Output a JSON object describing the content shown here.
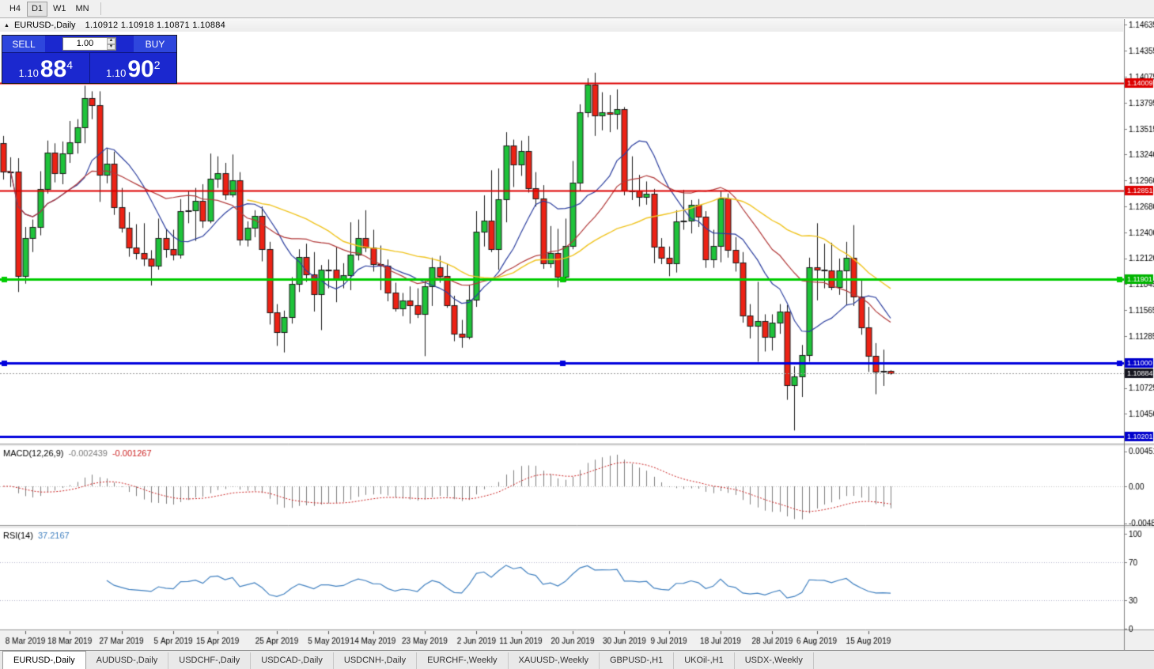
{
  "toolbar": {
    "periods": [
      "H4",
      "D1",
      "W1",
      "MN"
    ],
    "active_period": "D1"
  },
  "title_bar": {
    "panel_toggle_icon": "▲",
    "title": "EURUSD-,Daily",
    "ohlc": "1.10912 1.10918 1.10871 1.10884"
  },
  "trade_panel": {
    "sell_label": "SELL",
    "buy_label": "BUY",
    "volume": "1.00",
    "up_icon": "▲",
    "down_icon": "▼",
    "sell_price": {
      "prefix": "1.10",
      "big": "88",
      "sup": "4"
    },
    "buy_price": {
      "prefix": "1.10",
      "big": "90",
      "sup": "2"
    }
  },
  "chart_data": {
    "type": "candlestick",
    "symbol": "EURUSD-",
    "timeframe": "Daily",
    "colors": {
      "bg": "#ffffff",
      "bull": "#1ec33a",
      "bear": "#ed2215",
      "outline": "#1a1a1a",
      "axis_text": "#000000"
    },
    "price_axis": {
      "labels": [
        "1.14635",
        "1.14355",
        "1.14075",
        "1.13795",
        "1.13515",
        "1.13240",
        "1.12960",
        "1.12680",
        "1.12400",
        "1.12120",
        "1.11845",
        "1.11565",
        "1.11285",
        "1.10725",
        "1.10450"
      ]
    },
    "hlines": [
      {
        "price": 1.14009,
        "color": "#dd0000",
        "width": 2,
        "badge": "1.14009",
        "badge_bg": "#dd0000",
        "handles": false
      },
      {
        "price": 1.12851,
        "color": "#dd0000",
        "width": 2,
        "badge": "1.12851",
        "badge_bg": "#dd0000",
        "handles": false
      },
      {
        "price": 1.11901,
        "color": "#00cc00",
        "width": 3,
        "badge": "1.11901",
        "badge_bg": "#00b400",
        "handles": true
      },
      {
        "price": 1.11,
        "color": "#0000dd",
        "width": 3,
        "badge": "1.11000",
        "badge_bg": "#0000cc",
        "handles": true
      },
      {
        "price": 1.10201,
        "color": "#0000dd",
        "width": 3,
        "badge": "1.10201",
        "badge_bg": "#0000cc",
        "handles": false
      }
    ],
    "current_price": {
      "value": 1.10884,
      "badge": "1.10884",
      "badge_bg": "#15151f",
      "line_color": "#999999"
    },
    "date_labels": [
      {
        "i": 3,
        "t": "8 Mar 2019"
      },
      {
        "i": 9,
        "t": "18 Mar 2019"
      },
      {
        "i": 16,
        "t": "27 Mar 2019"
      },
      {
        "i": 23,
        "t": "5 Apr 2019"
      },
      {
        "i": 29,
        "t": "15 Apr 2019"
      },
      {
        "i": 37,
        "t": "25 Apr 2019"
      },
      {
        "i": 44,
        "t": "5 May 2019"
      },
      {
        "i": 50,
        "t": "14 May 2019"
      },
      {
        "i": 57,
        "t": "23 May 2019"
      },
      {
        "i": 64,
        "t": "2 Jun 2019"
      },
      {
        "i": 70,
        "t": "11 Jun 2019"
      },
      {
        "i": 77,
        "t": "20 Jun 2019"
      },
      {
        "i": 84,
        "t": "30 Jun 2019"
      },
      {
        "i": 90,
        "t": "9 Jul 2019"
      },
      {
        "i": 97,
        "t": "18 Jul 2019"
      },
      {
        "i": 104,
        "t": "28 Jul 2019"
      },
      {
        "i": 110,
        "t": "6 Aug 2019"
      },
      {
        "i": 117,
        "t": "15 Aug 2019"
      }
    ],
    "ma": [
      {
        "period": 10,
        "color": "#2c3f9f",
        "width": 1.2,
        "start_at_full": false
      },
      {
        "period": 21,
        "color": "#b23a3a",
        "width": 1.2,
        "start_at_full": false
      },
      {
        "period": 34,
        "color": "#f0c420",
        "width": 1.4,
        "start_at_full": true
      }
    ],
    "macd": {
      "label": "MACD(12,26,9)",
      "value": "-0.002439",
      "signal": "-0.001267",
      "bar_color": "#7f7f7f",
      "signal_color": "#cc2222",
      "axis": [
        {
          "t": "0.004517",
          "v": 0.004517
        },
        {
          "t": "0.00",
          "v": 0
        },
        {
          "t": "-0.004806",
          "v": -0.004806
        }
      ]
    },
    "rsi": {
      "label": "RSI(14)",
      "value": "37.2167",
      "period": 14,
      "line_color": "#4080c0",
      "levels": [
        70,
        30
      ],
      "axis": [
        {
          "t": "100",
          "v": 100
        },
        {
          "t": "70",
          "v": 70
        },
        {
          "t": "30",
          "v": 30
        },
        {
          "t": "0",
          "v": 0
        }
      ]
    },
    "candles": [
      [
        1.1336,
        1.1344,
        1.1297,
        1.1306
      ],
      [
        1.1306,
        1.1321,
        1.1289,
        1.1306
      ],
      [
        1.1306,
        1.132,
        1.1176,
        1.1193
      ],
      [
        1.1193,
        1.1246,
        1.1185,
        1.1234
      ],
      [
        1.1234,
        1.1254,
        1.1219,
        1.1246
      ],
      [
        1.1246,
        1.1306,
        1.1237,
        1.1287
      ],
      [
        1.1287,
        1.1339,
        1.1282,
        1.1326
      ],
      [
        1.1326,
        1.1336,
        1.1294,
        1.1304
      ],
      [
        1.1304,
        1.1338,
        1.1292,
        1.1325
      ],
      [
        1.1325,
        1.136,
        1.1315,
        1.1337
      ],
      [
        1.1337,
        1.1362,
        1.1325,
        1.1353
      ],
      [
        1.1353,
        1.1398,
        1.1336,
        1.1385
      ],
      [
        1.1385,
        1.1392,
        1.1362,
        1.1377
      ],
      [
        1.1377,
        1.1392,
        1.1273,
        1.1302
      ],
      [
        1.1302,
        1.133,
        1.1293,
        1.1314
      ],
      [
        1.1314,
        1.1327,
        1.1259,
        1.1267
      ],
      [
        1.1267,
        1.1288,
        1.124,
        1.1245
      ],
      [
        1.1245,
        1.1262,
        1.1214,
        1.1224
      ],
      [
        1.1224,
        1.1249,
        1.1211,
        1.1218
      ],
      [
        1.1218,
        1.125,
        1.1204,
        1.1212
      ],
      [
        1.1212,
        1.1221,
        1.1183,
        1.1204
      ],
      [
        1.1204,
        1.1255,
        1.12,
        1.1234
      ],
      [
        1.1234,
        1.1244,
        1.1213,
        1.1222
      ],
      [
        1.1222,
        1.1243,
        1.121,
        1.1216
      ],
      [
        1.1216,
        1.1276,
        1.1212,
        1.1263
      ],
      [
        1.1263,
        1.1285,
        1.125,
        1.1264
      ],
      [
        1.1264,
        1.1288,
        1.1231,
        1.1274
      ],
      [
        1.1274,
        1.1292,
        1.1245,
        1.1253
      ],
      [
        1.1253,
        1.1325,
        1.125,
        1.1298
      ],
      [
        1.1298,
        1.1322,
        1.1288,
        1.1304
      ],
      [
        1.1304,
        1.1315,
        1.1275,
        1.1281
      ],
      [
        1.1281,
        1.1324,
        1.1278,
        1.1296
      ],
      [
        1.1296,
        1.1305,
        1.1226,
        1.1232
      ],
      [
        1.1232,
        1.1252,
        1.1225,
        1.1245
      ],
      [
        1.1245,
        1.1264,
        1.1235,
        1.1258
      ],
      [
        1.1258,
        1.1268,
        1.1209,
        1.1222
      ],
      [
        1.1222,
        1.123,
        1.1141,
        1.1154
      ],
      [
        1.1154,
        1.1163,
        1.1118,
        1.1133
      ],
      [
        1.1133,
        1.1156,
        1.1111,
        1.1149
      ],
      [
        1.1149,
        1.1192,
        1.1142,
        1.1185
      ],
      [
        1.1185,
        1.1222,
        1.1176,
        1.1214
      ],
      [
        1.1214,
        1.1228,
        1.1187,
        1.1195
      ],
      [
        1.1195,
        1.1219,
        1.1155,
        1.1174
      ],
      [
        1.1174,
        1.1205,
        1.1135,
        1.12
      ],
      [
        1.12,
        1.1211,
        1.118,
        1.12
      ],
      [
        1.12,
        1.1224,
        1.1165,
        1.119
      ],
      [
        1.119,
        1.1207,
        1.118,
        1.1194
      ],
      [
        1.1194,
        1.1251,
        1.1178,
        1.1216
      ],
      [
        1.1216,
        1.1254,
        1.121,
        1.1234
      ],
      [
        1.1234,
        1.1264,
        1.1219,
        1.1224
      ],
      [
        1.1224,
        1.1243,
        1.1198,
        1.1206
      ],
      [
        1.1206,
        1.1226,
        1.1178,
        1.1204
      ],
      [
        1.1204,
        1.1211,
        1.1166,
        1.1175
      ],
      [
        1.1175,
        1.1186,
        1.1155,
        1.1158
      ],
      [
        1.1158,
        1.1175,
        1.115,
        1.1167
      ],
      [
        1.1167,
        1.1182,
        1.1142,
        1.1162
      ],
      [
        1.1162,
        1.118,
        1.1148,
        1.1152
      ],
      [
        1.1152,
        1.1188,
        1.1107,
        1.1182
      ],
      [
        1.1182,
        1.1213,
        1.1161,
        1.1203
      ],
      [
        1.1203,
        1.1215,
        1.1186,
        1.1193
      ],
      [
        1.1193,
        1.1206,
        1.1159,
        1.1162
      ],
      [
        1.1162,
        1.1172,
        1.1123,
        1.1131
      ],
      [
        1.1131,
        1.1146,
        1.1116,
        1.1128
      ],
      [
        1.1128,
        1.1184,
        1.1125,
        1.1168
      ],
      [
        1.1168,
        1.1263,
        1.116,
        1.1241
      ],
      [
        1.1241,
        1.128,
        1.1225,
        1.1253
      ],
      [
        1.1253,
        1.1307,
        1.1219,
        1.1222
      ],
      [
        1.1222,
        1.1309,
        1.12,
        1.1276
      ],
      [
        1.1276,
        1.1348,
        1.1251,
        1.1334
      ],
      [
        1.1334,
        1.134,
        1.1289,
        1.1313
      ],
      [
        1.1313,
        1.1339,
        1.1301,
        1.1328
      ],
      [
        1.1328,
        1.1344,
        1.1283,
        1.1288
      ],
      [
        1.1288,
        1.1305,
        1.1268,
        1.1277
      ],
      [
        1.1277,
        1.1291,
        1.1201,
        1.1207
      ],
      [
        1.1207,
        1.1247,
        1.1202,
        1.1218
      ],
      [
        1.1218,
        1.1244,
        1.1181,
        1.1192
      ],
      [
        1.1192,
        1.1255,
        1.1187,
        1.1226
      ],
      [
        1.1226,
        1.1317,
        1.1222,
        1.1294
      ],
      [
        1.1294,
        1.1378,
        1.1285,
        1.1369
      ],
      [
        1.1369,
        1.1406,
        1.1364,
        1.1399
      ],
      [
        1.1399,
        1.1412,
        1.1344,
        1.1366
      ],
      [
        1.1366,
        1.1391,
        1.135,
        1.1369
      ],
      [
        1.1369,
        1.1388,
        1.1348,
        1.1368
      ],
      [
        1.1368,
        1.1394,
        1.1351,
        1.1373
      ],
      [
        1.1373,
        1.1375,
        1.128,
        1.1285
      ],
      [
        1.1285,
        1.1322,
        1.1275,
        1.1285
      ],
      [
        1.1285,
        1.1302,
        1.1268,
        1.1278
      ],
      [
        1.1278,
        1.1295,
        1.127,
        1.1282
      ],
      [
        1.1282,
        1.1287,
        1.1207,
        1.1225
      ],
      [
        1.1225,
        1.1234,
        1.1206,
        1.1213
      ],
      [
        1.1213,
        1.1225,
        1.1193,
        1.1207
      ],
      [
        1.1207,
        1.1264,
        1.1197,
        1.1252
      ],
      [
        1.1252,
        1.1286,
        1.1243,
        1.1253
      ],
      [
        1.1253,
        1.1275,
        1.1239,
        1.127
      ],
      [
        1.127,
        1.1276,
        1.1246,
        1.1257
      ],
      [
        1.1257,
        1.1263,
        1.1202,
        1.1211
      ],
      [
        1.1211,
        1.1243,
        1.1202,
        1.1226
      ],
      [
        1.1226,
        1.1285,
        1.1208,
        1.1277
      ],
      [
        1.1277,
        1.1282,
        1.1213,
        1.1221
      ],
      [
        1.1221,
        1.1235,
        1.1198,
        1.1208
      ],
      [
        1.1208,
        1.1219,
        1.1143,
        1.1151
      ],
      [
        1.1151,
        1.1163,
        1.1126,
        1.114
      ],
      [
        1.114,
        1.1187,
        1.1101,
        1.1145
      ],
      [
        1.1145,
        1.1152,
        1.1112,
        1.1128
      ],
      [
        1.1128,
        1.1152,
        1.1113,
        1.1143
      ],
      [
        1.1143,
        1.1163,
        1.1131,
        1.1155
      ],
      [
        1.1155,
        1.1162,
        1.106,
        1.1076
      ],
      [
        1.1076,
        1.1096,
        1.1027,
        1.1085
      ],
      [
        1.1085,
        1.1119,
        1.1063,
        1.1108
      ],
      [
        1.1108,
        1.1213,
        1.1101,
        1.1203
      ],
      [
        1.1203,
        1.125,
        1.1167,
        1.12
      ],
      [
        1.12,
        1.1228,
        1.118,
        1.1199
      ],
      [
        1.1199,
        1.1229,
        1.1178,
        1.1181
      ],
      [
        1.1181,
        1.1212,
        1.1173,
        1.1199
      ],
      [
        1.1199,
        1.123,
        1.1162,
        1.1213
      ],
      [
        1.1213,
        1.1248,
        1.1161,
        1.1171
      ],
      [
        1.1171,
        1.119,
        1.113,
        1.1138
      ],
      [
        1.1138,
        1.116,
        1.109,
        1.1107
      ],
      [
        1.1107,
        1.1121,
        1.1066,
        1.109
      ],
      [
        1.109,
        1.1114,
        1.1075,
        1.1091
      ],
      [
        1.10912,
        1.10918,
        1.10871,
        1.10884
      ]
    ]
  },
  "tabs": {
    "active_index": 0,
    "items": [
      "EURUSD-,Daily",
      "AUDUSD-,Daily",
      "USDCHF-,Daily",
      "USDCAD-,Daily",
      "USDCNH-,Daily",
      "EURCHF-,Weekly",
      "XAUUSD-,Weekly",
      "GBPUSD-,H1",
      "UKOil-,H1",
      "USDX-,Weekly"
    ]
  }
}
